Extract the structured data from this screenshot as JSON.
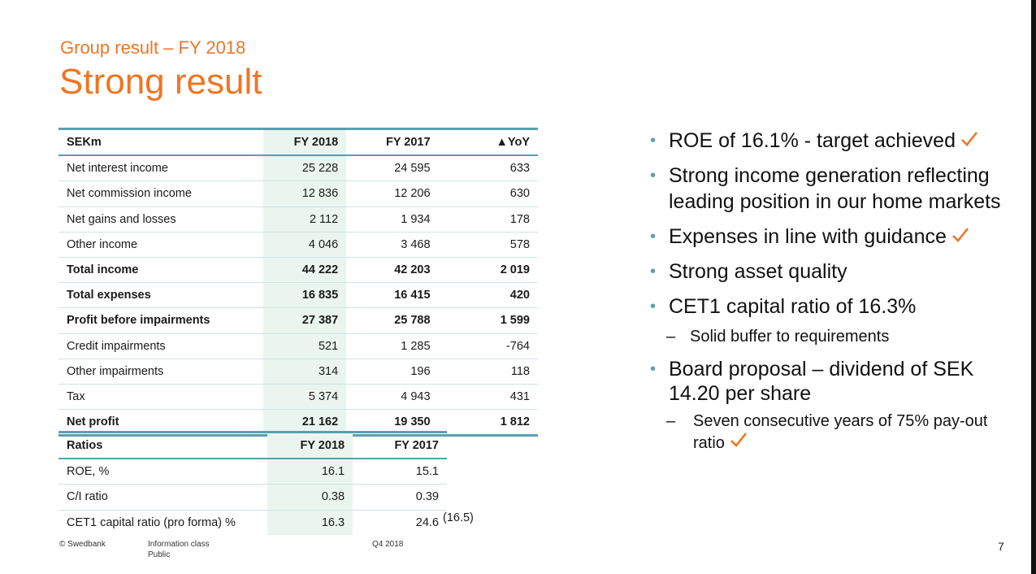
{
  "header": {
    "subtitle": "Group result – FY 2018",
    "title": "Strong result"
  },
  "financial_table": {
    "headers": [
      "SEKm",
      "FY 2018",
      "FY 2017",
      "▲YoY"
    ],
    "rows": [
      [
        "Net interest income",
        "25 228",
        "24 595",
        "633"
      ],
      [
        "Net commission income",
        "12 836",
        "12 206",
        "630"
      ],
      [
        "Net gains and losses",
        "2 112",
        "1 934",
        "178"
      ],
      [
        "Other income",
        "4 046",
        "3 468",
        "578"
      ],
      [
        "Total income",
        "44 222",
        "42 203",
        "2 019"
      ],
      [
        "Total expenses",
        "16 835",
        "16 415",
        "420"
      ],
      [
        "Profit before impairments",
        "27 387",
        "25 788",
        "1 599"
      ],
      [
        "Credit impairments",
        "521",
        "1 285",
        "-764"
      ],
      [
        "Other impairments",
        "314",
        "196",
        "118"
      ],
      [
        "Tax",
        "5 374",
        "4 943",
        "431"
      ],
      [
        "Net profit",
        "21 162",
        "19 350",
        "1 812"
      ]
    ]
  },
  "ratio_table": {
    "headers": [
      "Ratios",
      "FY 2018",
      "FY 2017"
    ],
    "rows": [
      [
        "ROE, %",
        "16.1",
        "15.1"
      ],
      [
        "C/I ratio",
        "0.38",
        "0.39"
      ],
      [
        "CET1 capital ratio (pro forma) %",
        "16.3",
        "24.6"
      ]
    ],
    "pro_forma_note": "(16.5)"
  },
  "bullets": {
    "items": [
      "ROE of 16.1% - target achieved",
      "Strong income generation reflecting leading position in our home markets",
      "Expenses in line with guidance",
      "Strong asset quality",
      "CET1 capital ratio of 16.3%",
      "Board proposal – dividend of SEK 14.20 per share"
    ],
    "subitems": [
      "Solid buffer to requirements",
      "Seven consecutive years of 75% pay-out ratio"
    ],
    "check_color": "#ee7623",
    "bullet_color": "#5a9fb0"
  },
  "footer": {
    "copyright": "© Swedbank",
    "info_class": "Information class",
    "info_value": "Public",
    "period": "Q4 2018",
    "page_number": "7"
  },
  "colors": {
    "accent": "#ee7623",
    "table_rule": "#5a9fb0",
    "highlight": "#eaf5ef"
  }
}
